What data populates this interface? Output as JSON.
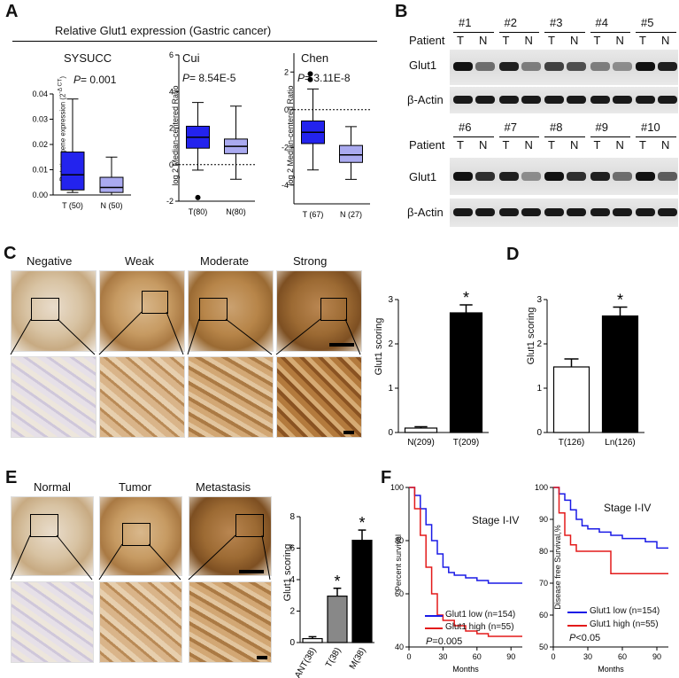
{
  "panels": {
    "a": "A",
    "b": "B",
    "c": "C",
    "d": "D",
    "e": "E",
    "f": "F"
  },
  "panel_a": {
    "title": "Relative Glut1 expression (Gastric  cancer)",
    "sub1": {
      "title": "SYSUCC",
      "pval": "= 0.001",
      "p": "P",
      "ylabel": "Relative gene expression (2",
      "ylabel_sup": "-Δ CT",
      "ylabel_end": ")",
      "yticks": [
        "0.00",
        "0.01",
        "0.02",
        "0.03",
        "0.04"
      ],
      "xticks": [
        "T (50)",
        "N (50)"
      ]
    },
    "sub2": {
      "title": "Cui",
      "pval": "= 8.54E-5",
      "p": "P",
      "ylabel": "log 2 Median-centered Ratio",
      "yticks": [
        "-2",
        "0",
        "2",
        "4",
        "6"
      ],
      "xticks": [
        "T(80)",
        "N(80)"
      ]
    },
    "sub3": {
      "title": "Chen",
      "pval": "= 3.11E-8",
      "p": "P",
      "ylabel": "log 2 Median-centered Ratio",
      "yticks": [
        "-4",
        "-2",
        "0",
        "2"
      ],
      "xticks": [
        "T (67)",
        "N (27)"
      ]
    }
  },
  "panel_b": {
    "patients_top": [
      "#1",
      "#2",
      "#3",
      "#4",
      "#5"
    ],
    "patients_bottom": [
      "#6",
      "#7",
      "#8",
      "#9",
      "#10"
    ],
    "patient_label": "Patient",
    "t": "T",
    "n": "N",
    "glut1": "Glut1",
    "actin": "β-Actin"
  },
  "panel_c": {
    "categories": [
      "Negative",
      "Weak",
      "Moderate",
      "Strong"
    ],
    "chart": {
      "ylabel": "Glut1 scoring",
      "yticks": [
        "0",
        "1",
        "2",
        "3"
      ],
      "xticks": [
        "N(209)",
        "T(209)"
      ],
      "star": "*"
    }
  },
  "panel_d": {
    "ylabel": "Glut1 scoring",
    "yticks": [
      "0",
      "1",
      "2",
      "3"
    ],
    "xticks": [
      "T(126)",
      "Ln(126)"
    ],
    "star": "*"
  },
  "panel_e": {
    "categories": [
      "Normal",
      "Tumor",
      "Metastasis"
    ],
    "chart": {
      "ylabel": "Glut1 scoring",
      "yticks": [
        "0",
        "2",
        "4",
        "6",
        "8"
      ],
      "xticks": [
        "ANT(38)",
        "T(38)",
        "M(38)"
      ],
      "star": "*"
    }
  },
  "panel_f": {
    "left": {
      "stage": "Stage I-IV",
      "ylabel": "Percent survival",
      "yticks": [
        "40",
        "60",
        "80",
        "100"
      ],
      "xticks": [
        "0",
        "30",
        "60",
        "90"
      ],
      "xlabel": "Months",
      "legend_low": "Glut1 low (n=154)",
      "legend_high": "Glut1 high (n=55)",
      "p": "P",
      "pval": "=0.005"
    },
    "right": {
      "stage": "Stage I-IV",
      "ylabel": "Disease free Survival,%",
      "yticks": [
        "50",
        "60",
        "70",
        "80",
        "90",
        "100"
      ],
      "xticks": [
        "0",
        "30",
        "60",
        "90"
      ],
      "xlabel": "Months",
      "legend_low": "Glut1 low (n=154)",
      "legend_high": "Glut1 high (n=55)",
      "p": "P",
      "pval": "<0.05"
    }
  },
  "colors": {
    "blue": "#1a1ae6",
    "red": "#e31a1a",
    "boxdark": "#2323ee",
    "boxlight": "#aaaaf0"
  },
  "chart_data": [
    {
      "type": "box",
      "id": "A-SYSUCC",
      "categories": [
        "T (50)",
        "N (50)"
      ],
      "ylim": [
        0,
        0.04
      ],
      "boxes": [
        {
          "min": 0.001,
          "q1": 0.002,
          "median": 0.008,
          "q3": 0.017,
          "max": 0.038
        },
        {
          "min": 0.0,
          "q1": 0.001,
          "median": 0.003,
          "q3": 0.007,
          "max": 0.015
        }
      ]
    },
    {
      "type": "box",
      "id": "A-Cui",
      "categories": [
        "T(80)",
        "N(80)"
      ],
      "ylim": [
        -2,
        6
      ],
      "boxes": [
        {
          "min": -0.3,
          "q1": 0.9,
          "median": 1.5,
          "q3": 2.1,
          "max": 3.4,
          "outliers": [
            -1.8
          ]
        },
        {
          "min": -0.8,
          "q1": 0.6,
          "median": 1.0,
          "q3": 1.4,
          "max": 3.2
        }
      ]
    },
    {
      "type": "box",
      "id": "A-Chen",
      "categories": [
        "T (67)",
        "N (27)"
      ],
      "ylim": [
        -5,
        3
      ],
      "boxes": [
        {
          "min": -3.2,
          "q1": -1.8,
          "median": -1.2,
          "q3": -0.6,
          "max": 1.1,
          "outliers": [
            1.9,
            1.6
          ]
        },
        {
          "min": -3.7,
          "q1": -2.8,
          "median": -2.4,
          "q3": -1.9,
          "max": -0.9
        }
      ]
    },
    {
      "type": "bar",
      "id": "C",
      "categories": [
        "N(209)",
        "T(209)"
      ],
      "values": [
        0.1,
        2.7
      ],
      "errors": [
        0.03,
        0.18
      ],
      "ylim": [
        0,
        3
      ]
    },
    {
      "type": "bar",
      "id": "D",
      "categories": [
        "T(126)",
        "Ln(126)"
      ],
      "values": [
        1.48,
        2.63
      ],
      "errors": [
        0.18,
        0.2
      ],
      "ylim": [
        0,
        3
      ]
    },
    {
      "type": "bar",
      "id": "E",
      "categories": [
        "ANT(38)",
        "T(38)",
        "M(38)"
      ],
      "values": [
        0.25,
        2.95,
        6.5
      ],
      "errors": [
        0.12,
        0.5,
        0.65
      ],
      "ylim": [
        0,
        8
      ]
    },
    {
      "type": "line",
      "id": "F-left",
      "xlim": [
        0,
        100
      ],
      "ylim": [
        40,
        100
      ],
      "series": [
        {
          "name": "Glut1 low (n=154)",
          "x": [
            0,
            5,
            10,
            15,
            20,
            25,
            30,
            35,
            40,
            50,
            60,
            70,
            100
          ],
          "y": [
            100,
            97,
            92,
            86,
            80,
            75,
            70,
            68,
            67,
            66,
            65,
            64,
            64
          ]
        },
        {
          "name": "Glut1 high (n=55)",
          "x": [
            0,
            5,
            10,
            15,
            20,
            25,
            30,
            40,
            50,
            60,
            70,
            100
          ],
          "y": [
            100,
            92,
            82,
            70,
            60,
            52,
            50,
            48,
            46,
            45,
            44,
            44
          ]
        }
      ]
    },
    {
      "type": "line",
      "id": "F-right",
      "xlim": [
        0,
        100
      ],
      "ylim": [
        50,
        100
      ],
      "series": [
        {
          "name": "Glut1 low (n=154)",
          "x": [
            0,
            5,
            10,
            15,
            20,
            25,
            30,
            40,
            50,
            60,
            70,
            80,
            90,
            100
          ],
          "y": [
            100,
            98,
            96,
            93,
            90,
            88,
            87,
            86,
            85,
            84,
            84,
            83,
            81,
            81
          ]
        },
        {
          "name": "Glut1 high (n=55)",
          "x": [
            0,
            5,
            10,
            15,
            20,
            30,
            40,
            50,
            60,
            70,
            100
          ],
          "y": [
            100,
            92,
            85,
            82,
            80,
            80,
            80,
            73,
            73,
            73,
            73
          ]
        }
      ]
    }
  ]
}
